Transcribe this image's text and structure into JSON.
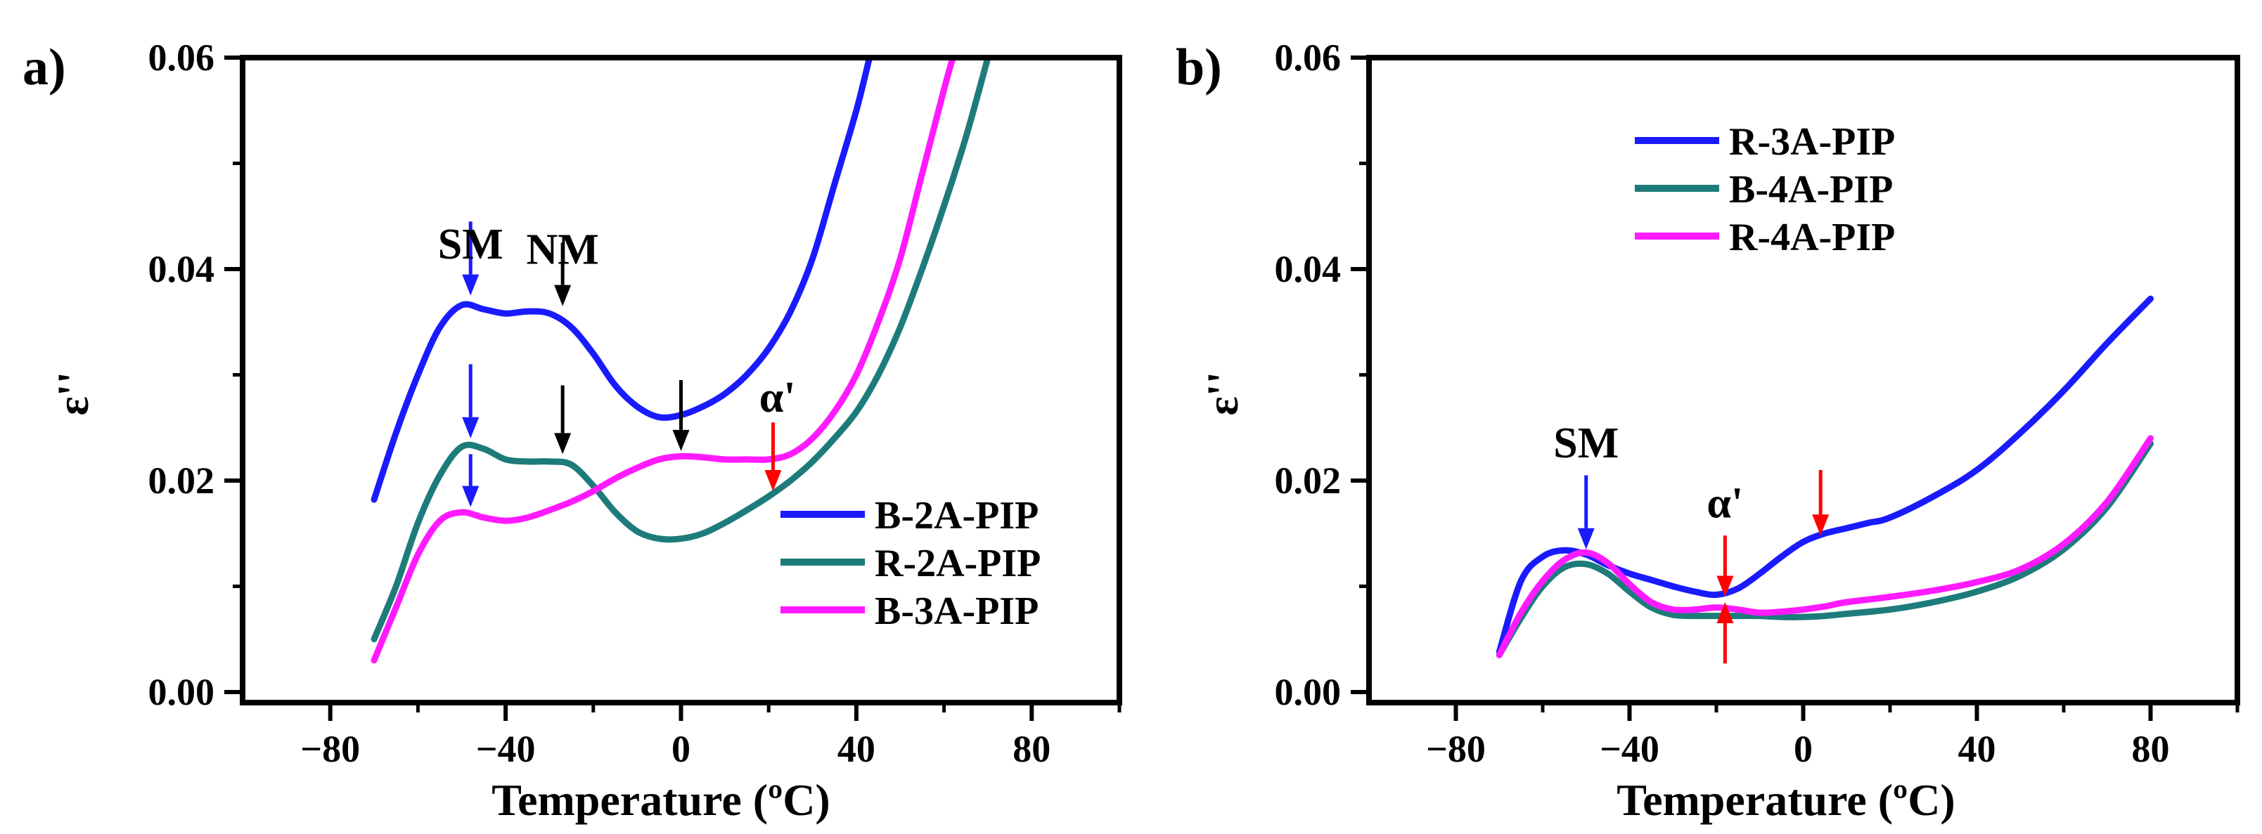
{
  "chart_data": [
    {
      "type": "line",
      "panel_label": "a)",
      "xlabel": "Temperature (ºC)",
      "ylabel": "ε''",
      "xlim": [
        -100,
        100
      ],
      "ylim": [
        -0.001,
        0.06
      ],
      "xticks": [
        -80,
        -40,
        0,
        40,
        80
      ],
      "xtick_labels": [
        "-80",
        "-40",
        "0",
        "40",
        "80"
      ],
      "yticks": [
        0.0,
        0.02,
        0.04,
        0.06
      ],
      "ytick_labels": [
        "0.00",
        "0.02",
        "0.04",
        "0.06"
      ],
      "legend_position": "bottom-right",
      "series": [
        {
          "name": "B-2A-PIP",
          "color": "#1a1aff",
          "x": [
            -70,
            -65,
            -60,
            -55,
            -50,
            -45,
            -40,
            -35,
            -30,
            -25,
            -20,
            -15,
            -10,
            -5,
            0,
            5,
            10,
            15,
            20,
            25,
            30,
            35,
            40,
            43
          ],
          "y": [
            0.0182,
            0.0245,
            0.03,
            0.0345,
            0.0366,
            0.0362,
            0.0358,
            0.036,
            0.0358,
            0.0345,
            0.032,
            0.029,
            0.027,
            0.026,
            0.0262,
            0.027,
            0.0282,
            0.03,
            0.0325,
            0.036,
            0.041,
            0.048,
            0.055,
            0.06
          ]
        },
        {
          "name": "R-2A-PIP",
          "color": "#1e7b7b",
          "x": [
            -70,
            -65,
            -60,
            -55,
            -50,
            -45,
            -40,
            -35,
            -30,
            -25,
            -20,
            -15,
            -10,
            -5,
            0,
            5,
            10,
            15,
            20,
            25,
            30,
            35,
            40,
            45,
            50,
            55,
            60,
            65,
            70
          ],
          "y": [
            0.005,
            0.01,
            0.016,
            0.0205,
            0.0232,
            0.023,
            0.022,
            0.0218,
            0.0218,
            0.0215,
            0.0195,
            0.017,
            0.0152,
            0.0145,
            0.0145,
            0.015,
            0.016,
            0.0172,
            0.0185,
            0.02,
            0.0218,
            0.024,
            0.0265,
            0.03,
            0.0345,
            0.04,
            0.046,
            0.0525,
            0.06
          ]
        },
        {
          "name": "B-3A-PIP",
          "color": "#ff1aff",
          "x": [
            -70,
            -65,
            -60,
            -55,
            -50,
            -45,
            -40,
            -35,
            -30,
            -25,
            -20,
            -15,
            -10,
            -5,
            0,
            5,
            10,
            15,
            20,
            25,
            30,
            35,
            40,
            45,
            50,
            55,
            60,
            62
          ],
          "y": [
            0.003,
            0.008,
            0.013,
            0.0162,
            0.017,
            0.0165,
            0.0162,
            0.0165,
            0.0172,
            0.018,
            0.019,
            0.0202,
            0.0212,
            0.022,
            0.0223,
            0.0222,
            0.022,
            0.022,
            0.022,
            0.0225,
            0.024,
            0.0265,
            0.03,
            0.035,
            0.041,
            0.049,
            0.057,
            0.06
          ]
        }
      ],
      "annotations": [
        {
          "text": "SM",
          "x": -48,
          "y": 0.041
        },
        {
          "text": "NM",
          "x": -27,
          "y": 0.0405
        },
        {
          "text": "α'",
          "x": 22,
          "y": 0.0265
        }
      ],
      "arrows": [
        {
          "x": -48,
          "y_from": 0.0445,
          "y_to": 0.0375,
          "color": "#1a1aff"
        },
        {
          "x": -27,
          "y_from": 0.0425,
          "y_to": 0.0365,
          "color": "#000000"
        },
        {
          "x": -48,
          "y_from": 0.031,
          "y_to": 0.024,
          "color": "#1a1aff"
        },
        {
          "x": -27,
          "y_from": 0.029,
          "y_to": 0.0225,
          "color": "#000000"
        },
        {
          "x": -48,
          "y_from": 0.0225,
          "y_to": 0.0175,
          "color": "#1a1aff"
        },
        {
          "x": 0,
          "y_from": 0.0295,
          "y_to": 0.0228,
          "color": "#000000"
        },
        {
          "x": 21,
          "y_from": 0.0255,
          "y_to": 0.019,
          "color": "#ff0000"
        }
      ]
    },
    {
      "type": "line",
      "panel_label": "b)",
      "xlabel": "Temperature (ºC)",
      "ylabel": "ε''",
      "xlim": [
        -100,
        100
      ],
      "ylim": [
        -0.001,
        0.06
      ],
      "xticks": [
        -80,
        -40,
        0,
        40,
        80
      ],
      "xtick_labels": [
        "-80",
        "-40",
        "0",
        "40",
        "80"
      ],
      "yticks": [
        0.0,
        0.02,
        0.04,
        0.06
      ],
      "ytick_labels": [
        "0.00",
        "0.02",
        "0.04",
        "0.06"
      ],
      "legend_position": "top-center",
      "series": [
        {
          "name": "R-3A-PIP",
          "color": "#1a1aff",
          "x": [
            -70,
            -65,
            -60,
            -55,
            -50,
            -45,
            -40,
            -35,
            -30,
            -25,
            -20,
            -15,
            -10,
            -5,
            0,
            5,
            10,
            15,
            20,
            30,
            40,
            50,
            60,
            70,
            80
          ],
          "y": [
            0.0038,
            0.0105,
            0.0128,
            0.0134,
            0.013,
            0.012,
            0.0112,
            0.0106,
            0.01,
            0.0095,
            0.0092,
            0.0098,
            0.0112,
            0.0128,
            0.0142,
            0.015,
            0.0155,
            0.016,
            0.0165,
            0.0185,
            0.021,
            0.0245,
            0.0285,
            0.033,
            0.0372
          ]
        },
        {
          "name": "B-4A-PIP",
          "color": "#1e7b7b",
          "x": [
            -70,
            -65,
            -60,
            -55,
            -50,
            -45,
            -40,
            -35,
            -30,
            -25,
            -20,
            -15,
            -10,
            -5,
            0,
            5,
            10,
            20,
            30,
            40,
            50,
            60,
            70,
            80
          ],
          "y": [
            0.0035,
            0.007,
            0.01,
            0.0118,
            0.0121,
            0.0112,
            0.0095,
            0.008,
            0.0073,
            0.0072,
            0.0072,
            0.0072,
            0.0072,
            0.0071,
            0.0071,
            0.0072,
            0.0074,
            0.0078,
            0.0085,
            0.0095,
            0.011,
            0.0135,
            0.0175,
            0.0235
          ]
        },
        {
          "name": "R-4A-PIP",
          "color": "#ff1aff",
          "x": [
            -70,
            -65,
            -60,
            -55,
            -50,
            -45,
            -40,
            -35,
            -30,
            -25,
            -20,
            -15,
            -10,
            -5,
            0,
            5,
            10,
            20,
            30,
            40,
            50,
            60,
            70,
            80
          ],
          "y": [
            0.0035,
            0.0075,
            0.0105,
            0.0125,
            0.0132,
            0.0122,
            0.0102,
            0.0085,
            0.0078,
            0.0078,
            0.008,
            0.0078,
            0.0075,
            0.0076,
            0.0078,
            0.0081,
            0.0085,
            0.009,
            0.0096,
            0.0104,
            0.0116,
            0.014,
            0.018,
            0.024
          ]
        }
      ],
      "annotations": [
        {
          "text": "SM",
          "x": -50,
          "y": 0.0222
        },
        {
          "text": "α'",
          "x": -18,
          "y": 0.0165
        }
      ],
      "arrows": [
        {
          "x": -50,
          "y_from": 0.0205,
          "y_to": 0.0135,
          "color": "#1a1aff"
        },
        {
          "x": -18,
          "y_from": 0.0148,
          "y_to": 0.009,
          "color": "#ff0000"
        },
        {
          "x": -18,
          "y_from": 0.0027,
          "y_to": 0.0085,
          "color": "#ff0000"
        },
        {
          "x": 4,
          "y_from": 0.021,
          "y_to": 0.0148,
          "color": "#ff0000"
        }
      ]
    }
  ]
}
